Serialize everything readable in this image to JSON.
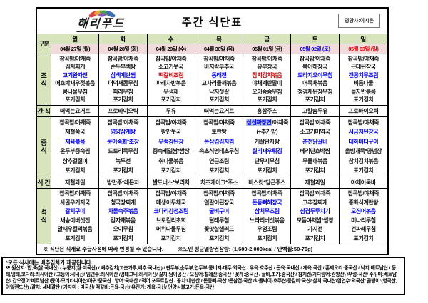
{
  "header": {
    "logo_text": "해리푸드",
    "title": "주간 식단표",
    "nutritionist": "영양사:이시은"
  },
  "colors": {
    "header_green": "#d7e4bc",
    "date_pink": "#f2dcdb",
    "main_dish_blue": "#0000e6",
    "special_red": "#c00000",
    "highlight_bg": "#b4c6e7",
    "saturday_blue": "#0000ff",
    "sunday_red": "#ff0000"
  },
  "columns": {
    "category_label": "구분",
    "days": [
      "월",
      "화",
      "수",
      "목",
      "금",
      "토",
      "일"
    ],
    "dates": [
      {
        "text": "04월 27일 (월)",
        "color": "#000000"
      },
      {
        "text": "04월 28일 (화)",
        "color": "#000000"
      },
      {
        "text": "04월 29일 (수)",
        "color": "#000000"
      },
      {
        "text": "04월 30일 (목)",
        "color": "#000000"
      },
      {
        "text": "05월 01일 (금)",
        "color": "#000000"
      },
      {
        "text": "05월 02일 (토)",
        "color": "#0000ff"
      },
      {
        "text": "05월 03일 (일)",
        "color": "#ff0000"
      }
    ]
  },
  "sections": [
    {
      "label": "조식",
      "type": "meal",
      "days": [
        [
          "잡곡밥/야채죽",
          "김치찌개",
          {
            "t": "고기완자전",
            "s": "main"
          },
          "애호박새우젓볶음",
          "콩나물무침",
          "포기김치"
        ],
        [
          "잡곡밥/야채죽",
          "순두부백탕",
          {
            "t": "삼색계란찜",
            "s": "main"
          },
          "더덕새콤무침",
          "파래무침",
          "포기김치"
        ],
        [
          "잡곡밥/야채죽",
          "소고기뭇국",
          {
            "t": "떡갈비조림",
            "s": "red"
          },
          "파래자반볶음",
          "무생채",
          "포기김치"
        ],
        [
          "잡곡밥/야채죽",
          "바지락부추국",
          {
            "t": "동태전",
            "s": "main"
          },
          "고사리들깨볶음",
          "낙지젓갈",
          "포기김치"
        ],
        [
          "잡곡밥/야채죽",
          "유부장국",
          {
            "t": "참치김치볶음",
            "s": "red"
          },
          "야채계란말이",
          "오이송송무침",
          "포기김치"
        ],
        [
          "잡곡밥/야채죽",
          "북어해장국",
          {
            "t": "도라지오이무침",
            "s": "main"
          },
          "어묵채볶음",
          "청경채된장무침",
          "포기김치"
        ],
        [
          "잡곡밥/야채죽",
          "근대된장국",
          {
            "t": "캔꽁치무조림",
            "s": "main"
          },
          "비름나물",
          "돌자반볶음",
          "포기김치"
        ]
      ]
    },
    {
      "label": "간식",
      "type": "single",
      "items": [
        "떠먹는요거트",
        "프로바이오틱",
        "두유",
        "떠먹는요거트",
        "홍삼주스",
        "고칼슘두유",
        "프로바이오틱"
      ]
    },
    {
      "label": "중식",
      "type": "meal",
      "days": [
        [
          "잡곡밥/야채죽",
          "제철쑥국",
          {
            "t": "제육볶음",
            "s": "main"
          },
          "온두부증숙찜",
          "상추겉절이",
          "포기김치"
        ],
        [
          "잡곡밥/야채죽",
          {
            "t": "영양삼계탕",
            "s": "main"
          },
          {
            "t": "문어숙회*초장",
            "s": "main"
          },
          "도토리묵무침",
          "녹두전",
          "포기김치"
        ],
        [
          "잡곡밥/야채죽",
          "왕만둣국",
          {
            "t": "우렁강된장",
            "s": "main"
          },
          "증숙케일쌈*쌈장",
          "취나물볶음",
          "포기김치"
        ],
        [
          "잡곡밥/야채죽",
          "토란탕",
          {
            "t": "돈삼겹김치찜",
            "s": "main"
          },
          "속초식명태초무침",
          "연근조림",
          "포기김치"
        ],
        [
          {
            "segs": [
              {
                "t": "삼선짜장면",
                "s": "hl"
              },
              {
                "t": "/야채죽"
              }
            ]
          },
          "(+추가밥)",
          "게살완자탕",
          {
            "t": "칠리새우튀김",
            "s": "main"
          },
          "단무지무침",
          "포기김치"
        ],
        [
          "잡곡밥/야채죽",
          "소고기미역국",
          {
            "t": "춘천닭갈비",
            "s": "main"
          },
          "베리단호박찜",
          "무들깨볶음",
          "포기김치"
        ],
        [
          "잡곡밥/야채죽",
          {
            "t": "시금치된장국",
            "s": "main"
          },
          {
            "t": "대하버터구이",
            "s": "main"
          },
          "올방개묵*양념장",
          "참치김치볶음",
          "포기김치"
        ]
      ]
    },
    {
      "label": "식간",
      "type": "single",
      "items": [
        "제철과일",
        "밤만주*레몬차",
        "쌀도너스*보리차",
        "치즈케이크*주스",
        "비스킷*당근주스",
        "제철과일",
        "야채어묵바"
      ]
    },
    {
      "label": "석식",
      "type": "meal",
      "days": [
        [
          "잡곡밥/야채죽",
          "사골우거지국",
          {
            "t": "갈치구이",
            "s": "main"
          },
          "새송이버섯전",
          "알새우컬리볶음",
          "포기김치"
        ],
        [
          "잡곡밥/야채죽",
          "청국장찌개",
          {
            "t": "차돌숙주볶음",
            "s": "main"
          },
          "감자채볶음",
          "오이무침",
          "포기김치"
        ],
        [
          "잡곡밥/야채죽",
          "매생이무채국",
          {
            "t": "코다리강정조림",
            "s": "main"
          },
          "브로컬리초회",
          "머위나물무침",
          "포기김치"
        ],
        [
          "잡곡밥/야채죽",
          "얼갈이된장국",
          {
            "t": "굴비구이",
            "s": "main"
          },
          "달래무침",
          "꽃맛살샐러드",
          "포기김치"
        ],
        [
          "잡곡밥/야채죽",
          {
            "t": "돈등뼈해장국",
            "s": "main"
          },
          {
            "t": "삼치무조림",
            "s": "main"
          },
          "느타리버섯볶음",
          "우엉조림",
          "포기김치"
        ],
        [
          "잡곡밥/야채죽",
          "고추장찌개",
          {
            "t": "삼겹두루치기",
            "s": "main"
          },
          "모듬야채쌈*쌈장",
          "가지전",
          "포기김치"
        ],
        [
          "잡곡밥/야채죽",
          "중화식계란탕",
          {
            "t": "오징어볶음",
            "s": "main"
          },
          "미나리무침",
          "건파래무침",
          "포기김치"
        ]
      ]
    }
  ],
  "footer": {
    "note_left": "※ 식단은 식재료 수급사정에 따라 변경될 수 있습니다.",
    "note_right": "※노인 평균열량권장량: (1,600-2,000kcal / 단백질:50-70g)",
    "kimchi_note": "*모든 식사에는 배추김치가 제공됩니다.",
    "origin_note": "※ 원산지: 밥,죽(쌀:국내산) / 누룽지(쌀:미국산) / 배추김치(고춧가루,배추:국내산) / 판두부,순두부,연두부,콩비지-대두:외국산 / 우육:호주산 / 돈육:국내산 / 계육:국산 / 훈제오리:중국산 / 낙지:베트남산 / 동태,명태,코다리:러시아산 / 고등어:국내산/ 임연수:러시아산 /명태고니:러시아산/ 갈치:남아공산 / 오징어:칠레산,중국산 / 꽃게:중국산 / 굴비,조기:중국산 / 참치캔(가다랑어:원양산) /우렁-국산/ 주꾸미:베트남산/ 갑오징어:베트남산 /문어-모리타니아산/아귀:중국산 / 방어:국내산 / 적어:포루트칼산 / 꽁치:대만산 / 돈등뼈-국산 /돈삼겹-국산 /차돌박이-호주산/등갈비:국산/ 삼치:국내산/임연수:외국산/ 골뱅이:(영국산,아일랜드산) /갈치: 세네갈산 / 가자미 : 미국산/ 떡갈비:돈육-국산/ 유린기: 계육-국산/ 언양식불고기:돈육-국산"
  }
}
